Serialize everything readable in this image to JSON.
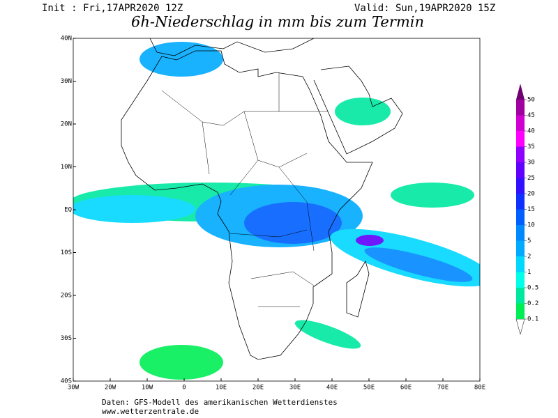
{
  "header": {
    "init": "Init : Fri,17APR2020 12Z",
    "valid": "Valid: Sun,19APR2020 15Z",
    "title": "6h-Niederschlag in mm bis zum Termin"
  },
  "map": {
    "lon_labels": [
      "30W",
      "20W",
      "10W",
      "0",
      "10E",
      "20E",
      "30E",
      "40E",
      "50E",
      "60E",
      "70E",
      "80E"
    ],
    "lat_labels": [
      "40N",
      "30N",
      "20N",
      "10N",
      "EQ",
      "10S",
      "20S",
      "30S",
      "40S"
    ]
  },
  "legend": {
    "levels": [
      {
        "value": 0.1,
        "color": "#00ee55"
      },
      {
        "value": 0.2,
        "color": "#00e8a0"
      },
      {
        "value": 0.5,
        "color": "#00ffe8"
      },
      {
        "value": 1,
        "color": "#00d8ff"
      },
      {
        "value": 2,
        "color": "#00aaff"
      },
      {
        "value": 5,
        "color": "#0088ff"
      },
      {
        "value": 10,
        "color": "#0060ff"
      },
      {
        "value": 15,
        "color": "#1030ff"
      },
      {
        "value": 20,
        "color": "#3010ff"
      },
      {
        "value": 25,
        "color": "#6000ff"
      },
      {
        "value": 30,
        "color": "#9000ff"
      },
      {
        "value": 35,
        "color": "#ff00ff"
      },
      {
        "value": 40,
        "color": "#d000d0"
      },
      {
        "value": 45,
        "color": "#a000a0"
      },
      {
        "value": 50,
        "color": "#700070"
      }
    ]
  },
  "footer": {
    "line1": "Daten: GFS-Modell des amerikanischen Wetterdienstes",
    "line2": "www.wetterzentrale.de"
  }
}
